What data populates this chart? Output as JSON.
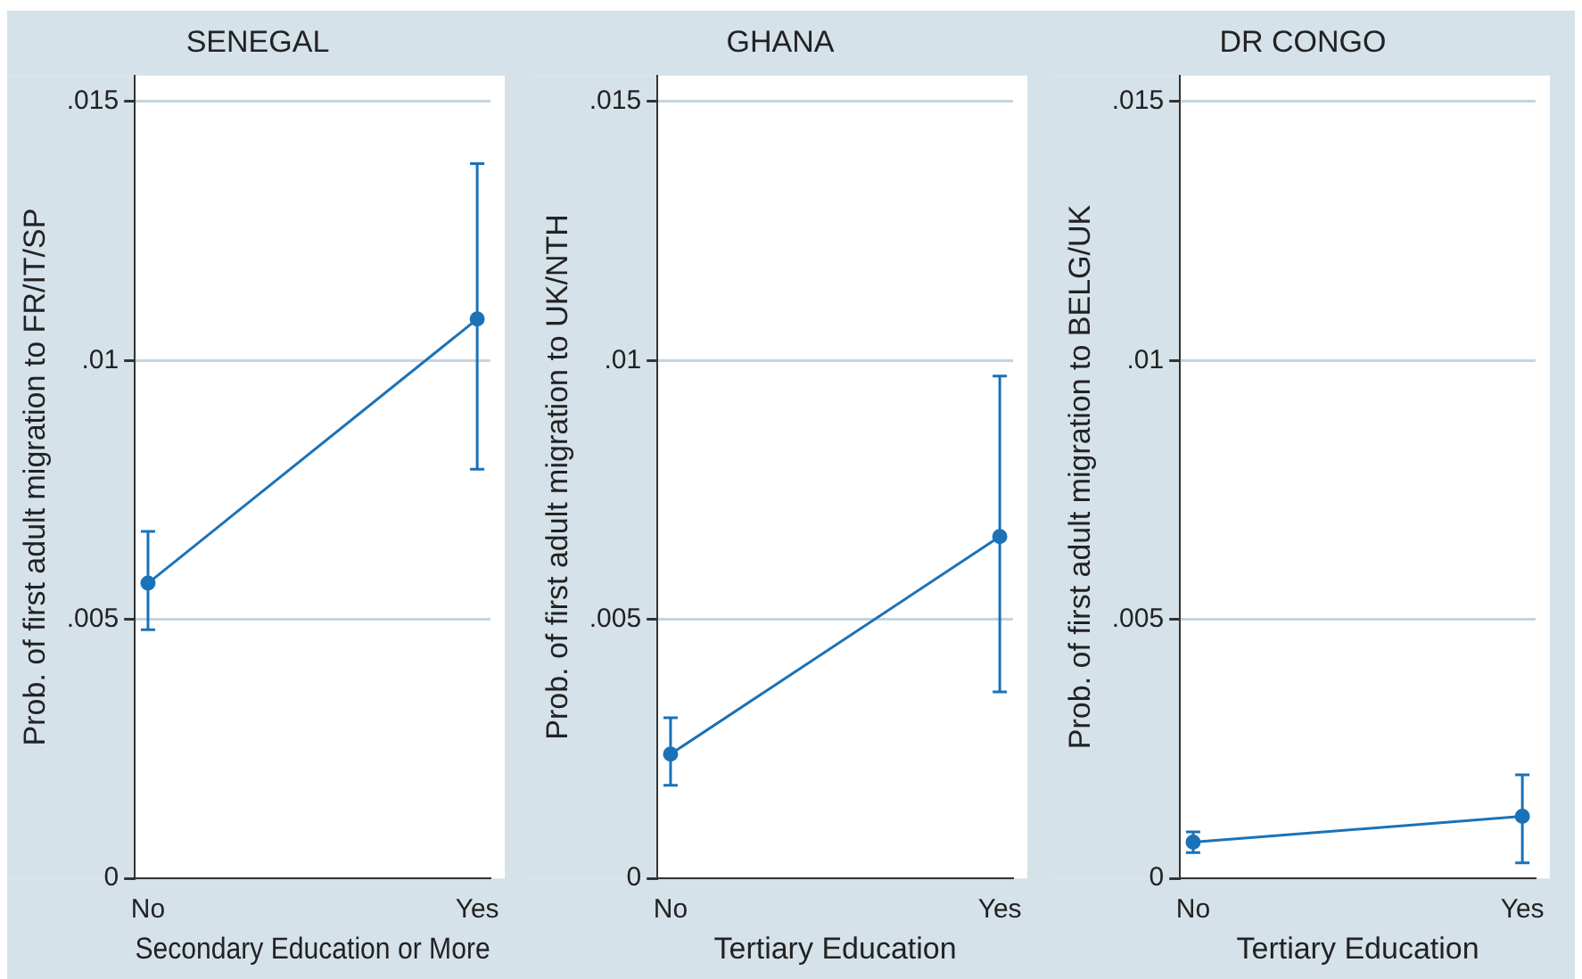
{
  "chart_data": [
    {
      "type": "line",
      "title": "SENEGAL",
      "xlabel": "Secondary Education or More",
      "ylabel": "Prob. of first adult migration to FR/IT/SP",
      "categories": [
        "No",
        "Yes"
      ],
      "series": [
        {
          "color": "#1a72b8",
          "values": [
            0.0057,
            0.0108
          ],
          "errors": [
            [
              0.0048,
              0.0067
            ],
            [
              0.0079,
              0.0138
            ]
          ]
        }
      ],
      "ylim": [
        0,
        0.0155
      ],
      "yticks": [
        {
          "value": 0,
          "label": "0"
        },
        {
          "value": 0.005,
          "label": ".005"
        },
        {
          "value": 0.01,
          "label": ".01"
        },
        {
          "value": 0.015,
          "label": ".015"
        }
      ],
      "grid": "y",
      "legend": false,
      "marker": "circle"
    },
    {
      "type": "line",
      "title": "GHANA",
      "xlabel": "Tertiary Education",
      "ylabel": "Prob. of first adult migration to UK/NTH",
      "categories": [
        "No",
        "Yes"
      ],
      "series": [
        {
          "color": "#1a72b8",
          "values": [
            0.0024,
            0.0066
          ],
          "errors": [
            [
              0.0018,
              0.0031
            ],
            [
              0.0036,
              0.0097
            ]
          ]
        }
      ],
      "ylim": [
        0,
        0.0155
      ],
      "yticks": [
        {
          "value": 0,
          "label": "0"
        },
        {
          "value": 0.005,
          "label": ".005"
        },
        {
          "value": 0.01,
          "label": ".01"
        },
        {
          "value": 0.015,
          "label": ".015"
        }
      ],
      "grid": "y",
      "legend": false,
      "marker": "circle"
    },
    {
      "type": "line",
      "title": "DR CONGO",
      "xlabel": "Tertiary Education",
      "ylabel": "Prob. of first adult migration to BELG/UK",
      "categories": [
        "No",
        "Yes"
      ],
      "series": [
        {
          "color": "#1a72b8",
          "values": [
            0.0007,
            0.0012
          ],
          "errors": [
            [
              0.0005,
              0.0009
            ],
            [
              0.0003,
              0.002
            ]
          ]
        }
      ],
      "ylim": [
        0,
        0.0155
      ],
      "yticks": [
        {
          "value": 0,
          "label": "0"
        },
        {
          "value": 0.005,
          "label": ".005"
        },
        {
          "value": 0.01,
          "label": ".01"
        },
        {
          "value": 0.015,
          "label": ".015"
        }
      ],
      "grid": "y",
      "legend": false,
      "marker": "circle"
    }
  ]
}
